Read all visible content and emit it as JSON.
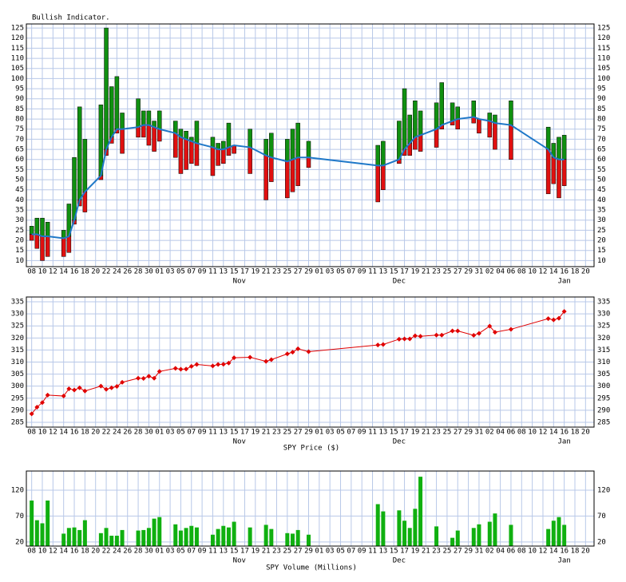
{
  "chart_data": [
    {
      "type": "floating_bar",
      "title": "Bullish Indicator.",
      "x": [
        0,
        1,
        2,
        3,
        6,
        7,
        8,
        9,
        10,
        13,
        14,
        15,
        16,
        17,
        20,
        21,
        22,
        23,
        24,
        27,
        28,
        29,
        30,
        31,
        34,
        35,
        36,
        37,
        38,
        41,
        44,
        45,
        48,
        49,
        50,
        52,
        65,
        66,
        69,
        70,
        71,
        72,
        73,
        76,
        77,
        79,
        80,
        83,
        84,
        86,
        87,
        90,
        97,
        98,
        99,
        100
      ],
      "xlim": [
        -1,
        105.6
      ],
      "xticks": [
        {
          "value": 0,
          "label": "08"
        },
        {
          "value": 2,
          "label": "10"
        },
        {
          "value": 4,
          "label": "12"
        },
        {
          "value": 6,
          "label": "14"
        },
        {
          "value": 8,
          "label": "16"
        },
        {
          "value": 10,
          "label": "18"
        },
        {
          "value": 12,
          "label": "20"
        },
        {
          "value": 14,
          "label": "22"
        },
        {
          "value": 16,
          "label": "24"
        },
        {
          "value": 18,
          "label": "26"
        },
        {
          "value": 20,
          "label": "28"
        },
        {
          "value": 22,
          "label": "30"
        },
        {
          "value": 24,
          "label": "01"
        },
        {
          "value": 26,
          "label": "03"
        },
        {
          "value": 28,
          "label": "05"
        },
        {
          "value": 30,
          "label": "07"
        },
        {
          "value": 32,
          "label": "09"
        },
        {
          "value": 34,
          "label": "11"
        },
        {
          "value": 36,
          "label": "13"
        },
        {
          "value": 38,
          "label": "15"
        },
        {
          "value": 40,
          "label": "17"
        },
        {
          "value": 42,
          "label": "19"
        },
        {
          "value": 44,
          "label": "21"
        },
        {
          "value": 46,
          "label": "23"
        },
        {
          "value": 48,
          "label": "25"
        },
        {
          "value": 50,
          "label": "27"
        },
        {
          "value": 52,
          "label": "29"
        },
        {
          "value": 54,
          "label": "01"
        },
        {
          "value": 56,
          "label": "03"
        },
        {
          "value": 58,
          "label": "05"
        },
        {
          "value": 60,
          "label": "07"
        },
        {
          "value": 62,
          "label": "09"
        },
        {
          "value": 64,
          "label": "11"
        },
        {
          "value": 66,
          "label": "13"
        },
        {
          "value": 68,
          "label": "15"
        },
        {
          "value": 70,
          "label": "17"
        },
        {
          "value": 72,
          "label": "19"
        },
        {
          "value": 74,
          "label": "21"
        },
        {
          "value": 76,
          "label": "23"
        },
        {
          "value": 78,
          "label": "25"
        },
        {
          "value": 80,
          "label": "27"
        },
        {
          "value": 82,
          "label": "29"
        },
        {
          "value": 84,
          "label": "31"
        },
        {
          "value": 86,
          "label": "02"
        },
        {
          "value": 88,
          "label": "04"
        },
        {
          "value": 90,
          "label": "06"
        },
        {
          "value": 92,
          "label": "08"
        },
        {
          "value": 94,
          "label": "10"
        },
        {
          "value": 96,
          "label": "12"
        },
        {
          "value": 98,
          "label": "14"
        },
        {
          "value": 100,
          "label": "16"
        },
        {
          "value": 102,
          "label": "18"
        },
        {
          "value": 104,
          "label": "20"
        }
      ],
      "month_labels": [
        {
          "value": 39,
          "label": "Nov"
        },
        {
          "value": 69,
          "label": "Dec"
        },
        {
          "value": 100,
          "label": "Jan"
        }
      ],
      "high": [
        27,
        31,
        31,
        29,
        25,
        38,
        61,
        86,
        70,
        87,
        125,
        96,
        101,
        83,
        90,
        84,
        84,
        79,
        84,
        79,
        75,
        74,
        71,
        79,
        71,
        68,
        69,
        78,
        67,
        75,
        70,
        73,
        70,
        75,
        78,
        69,
        67,
        69,
        79,
        95,
        82,
        89,
        84,
        88,
        98,
        88,
        86,
        89,
        80,
        83,
        82,
        89,
        76,
        68,
        71,
        72
      ],
      "low": [
        20,
        16,
        10,
        12,
        12,
        14,
        28,
        37,
        34,
        50,
        62,
        68,
        73,
        63,
        71,
        71,
        67,
        64,
        69,
        61,
        53,
        55,
        58,
        57,
        52,
        57,
        58,
        62,
        63,
        53,
        40,
        49,
        41,
        44,
        47,
        56,
        39,
        45,
        58,
        62,
        62,
        65,
        64,
        66,
        75,
        77,
        75,
        78,
        73,
        71,
        65,
        60,
        43,
        48,
        41,
        47
      ],
      "average": [
        23,
        23,
        22,
        22,
        21,
        22,
        30,
        40,
        44,
        52,
        65,
        71,
        75,
        75,
        76,
        77,
        77,
        76,
        75,
        73,
        71,
        70,
        69,
        68,
        66,
        65,
        65,
        66,
        67,
        66,
        62,
        61,
        59,
        60,
        61,
        61,
        57,
        57,
        60,
        65,
        68,
        71,
        72,
        75,
        77,
        79,
        80,
        81,
        80,
        79,
        78,
        77,
        65,
        61,
        60,
        60
      ],
      "up_color": "#109010",
      "down_color": "#e01010",
      "line_color": "#1f78c8",
      "ylim": [
        7,
        127
      ],
      "yticks": [
        10,
        15,
        20,
        25,
        30,
        35,
        40,
        45,
        50,
        55,
        60,
        65,
        70,
        75,
        80,
        85,
        90,
        95,
        100,
        105,
        110,
        115,
        120,
        125
      ],
      "grid": true
    },
    {
      "type": "line",
      "xlabel": "SPY Price ($)",
      "values": [
        288.5,
        291.3,
        293.2,
        296.3,
        295.9,
        298.9,
        298.4,
        299.3,
        298.0,
        300.0,
        298.7,
        299.3,
        299.9,
        301.6,
        303.3,
        303.2,
        304.1,
        303.3,
        306.1,
        307.4,
        307.0,
        307.1,
        308.2,
        309.0,
        308.4,
        309.0,
        309.1,
        309.6,
        311.8,
        312.0,
        310.3,
        311.0,
        313.4,
        314.1,
        315.5,
        314.3,
        317.1,
        317.3,
        319.5,
        319.6,
        319.6,
        320.9,
        320.7,
        321.2,
        321.2,
        322.9,
        322.9,
        321.1,
        321.9,
        324.9,
        322.4,
        323.6,
        328.0,
        327.5,
        328.2,
        331.0
      ],
      "color": "#e00000",
      "ylim": [
        283,
        337
      ],
      "yticks": [
        285,
        290,
        295,
        300,
        305,
        310,
        315,
        320,
        325,
        330,
        335
      ],
      "grid": true
    },
    {
      "type": "bar",
      "xlabel": "SPY Volume (Millions)",
      "values": [
        100,
        62,
        56,
        100,
        36,
        47,
        48,
        43,
        62,
        37,
        47,
        32,
        32,
        43,
        42,
        43,
        47,
        65,
        68,
        54,
        42,
        47,
        51,
        48,
        34,
        45,
        51,
        48,
        59,
        48,
        53,
        45,
        37,
        36,
        43,
        34,
        93,
        79,
        81,
        61,
        47,
        84,
        146,
        50,
        null,
        28,
        42,
        47,
        54,
        59,
        75,
        53,
        45,
        61,
        68,
        53
      ],
      "color": "#10b010",
      "ylim": [
        12,
        157
      ],
      "yticks": [
        20,
        70,
        120
      ],
      "grid": true
    }
  ]
}
